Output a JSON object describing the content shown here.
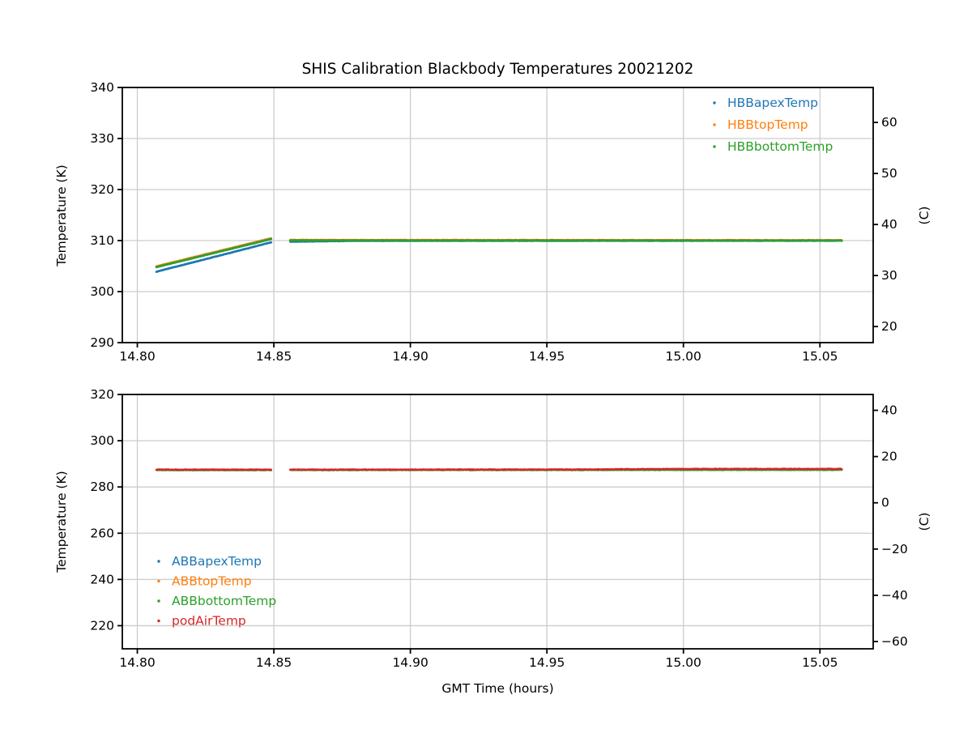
{
  "chart_data": [
    {
      "type": "scatter",
      "id": "top-subplot",
      "title": "SHIS Calibration Blackbody Temperatures 20021202",
      "ylabel": "Temperature (K)",
      "ylabel_right": "(C)",
      "grid": true,
      "xlim": [
        14.7945,
        15.0695
      ],
      "ylim": [
        290,
        340
      ],
      "x_ticks": [
        {
          "v": 14.8,
          "label": "14.80"
        },
        {
          "v": 14.85,
          "label": "14.85"
        },
        {
          "v": 14.9,
          "label": "14.90"
        },
        {
          "v": 14.95,
          "label": "14.95"
        },
        {
          "v": 15.0,
          "label": "15.00"
        },
        {
          "v": 15.05,
          "label": "15.05"
        }
      ],
      "y_ticks_left": [
        {
          "v": 290,
          "label": "290"
        },
        {
          "v": 300,
          "label": "300"
        },
        {
          "v": 310,
          "label": "310"
        },
        {
          "v": 320,
          "label": "320"
        },
        {
          "v": 330,
          "label": "330"
        },
        {
          "v": 340,
          "label": "340"
        }
      ],
      "y_ticks_right_celsius": [
        {
          "c": 20,
          "label": "20"
        },
        {
          "c": 30,
          "label": "30"
        },
        {
          "c": 40,
          "label": "40"
        },
        {
          "c": 50,
          "label": "50"
        },
        {
          "c": 60,
          "label": "60"
        }
      ],
      "legend": {
        "anchor": "upper-right"
      },
      "data_gap_hours": [
        14.849,
        14.856
      ],
      "series": [
        {
          "name": "HBBapexTemp",
          "color": "#1f77b4",
          "lw": 2.8,
          "noise": 0.025,
          "segments": [
            [
              [
                14.807,
                303.9
              ],
              [
                14.849,
                309.65
              ]
            ],
            [
              [
                14.856,
                309.78
              ],
              [
                14.88,
                309.95
              ],
              [
                15.058,
                309.97
              ]
            ]
          ]
        },
        {
          "name": "HBBtopTemp",
          "color": "#ff7f0e",
          "lw": 2.8,
          "noise": 0.03,
          "segments": [
            [
              [
                14.807,
                304.95
              ],
              [
                14.849,
                310.45
              ]
            ],
            [
              [
                14.856,
                310.12
              ],
              [
                15.058,
                310.08
              ]
            ]
          ]
        },
        {
          "name": "HBBbottomTemp",
          "color": "#2ca02c",
          "lw": 2.8,
          "noise": 0.02,
          "segments": [
            [
              [
                14.807,
                304.8
              ],
              [
                14.849,
                310.3
              ]
            ],
            [
              [
                14.856,
                310.02
              ],
              [
                15.058,
                310.0
              ]
            ]
          ]
        }
      ]
    },
    {
      "type": "scatter",
      "id": "bottom-subplot",
      "xlabel": "GMT Time (hours)",
      "ylabel": "Temperature (K)",
      "ylabel_right": "(C)",
      "grid": true,
      "xlim": [
        14.7945,
        15.0695
      ],
      "ylim": [
        210,
        320
      ],
      "x_ticks": [
        {
          "v": 14.8,
          "label": "14.80"
        },
        {
          "v": 14.85,
          "label": "14.85"
        },
        {
          "v": 14.9,
          "label": "14.90"
        },
        {
          "v": 14.95,
          "label": "14.95"
        },
        {
          "v": 15.0,
          "label": "15.00"
        },
        {
          "v": 15.05,
          "label": "15.05"
        }
      ],
      "y_ticks_left": [
        {
          "v": 220,
          "label": "220"
        },
        {
          "v": 240,
          "label": "240"
        },
        {
          "v": 260,
          "label": "260"
        },
        {
          "v": 280,
          "label": "280"
        },
        {
          "v": 300,
          "label": "300"
        },
        {
          "v": 320,
          "label": "320"
        }
      ],
      "y_ticks_right_celsius": [
        {
          "c": -60,
          "label": "−60"
        },
        {
          "c": -40,
          "label": "−40"
        },
        {
          "c": -20,
          "label": "−20"
        },
        {
          "c": 0,
          "label": "0"
        },
        {
          "c": 20,
          "label": "20"
        },
        {
          "c": 40,
          "label": "40"
        }
      ],
      "legend": {
        "anchor": "lower-left"
      },
      "data_gap_hours": [
        14.849,
        14.856
      ],
      "series": [
        {
          "name": "ABBapexTemp",
          "color": "#1f77b4",
          "lw": 2.2,
          "noise": 0.22,
          "segments": [
            [
              [
                14.807,
                287.35
              ],
              [
                14.849,
                287.35
              ]
            ],
            [
              [
                14.856,
                287.35
              ],
              [
                15.058,
                287.5
              ]
            ]
          ]
        },
        {
          "name": "ABBtopTemp",
          "color": "#ff7f0e",
          "lw": 2.2,
          "noise": 0.1,
          "segments": [
            [
              [
                14.807,
                287.45
              ],
              [
                14.849,
                287.45
              ]
            ],
            [
              [
                14.856,
                287.45
              ],
              [
                15.058,
                287.6
              ]
            ]
          ]
        },
        {
          "name": "ABBbottomTemp",
          "color": "#2ca02c",
          "lw": 2.4,
          "noise": 0.08,
          "segments": [
            [
              [
                14.807,
                287.25
              ],
              [
                14.849,
                287.25
              ]
            ],
            [
              [
                14.856,
                287.3
              ],
              [
                15.058,
                287.35
              ]
            ]
          ]
        },
        {
          "name": "podAirTemp",
          "color": "#d62728",
          "lw": 2.6,
          "noise": 0.1,
          "segments": [
            [
              [
                14.807,
                287.5
              ],
              [
                14.849,
                287.5
              ]
            ],
            [
              [
                14.856,
                287.5
              ],
              [
                14.96,
                287.55
              ],
              [
                15.0,
                287.8
              ],
              [
                15.058,
                287.8
              ]
            ]
          ]
        }
      ]
    }
  ],
  "style": {
    "spine_color": "#000000",
    "grid_color": "#cccccc",
    "tick_label_color": "#000000"
  }
}
